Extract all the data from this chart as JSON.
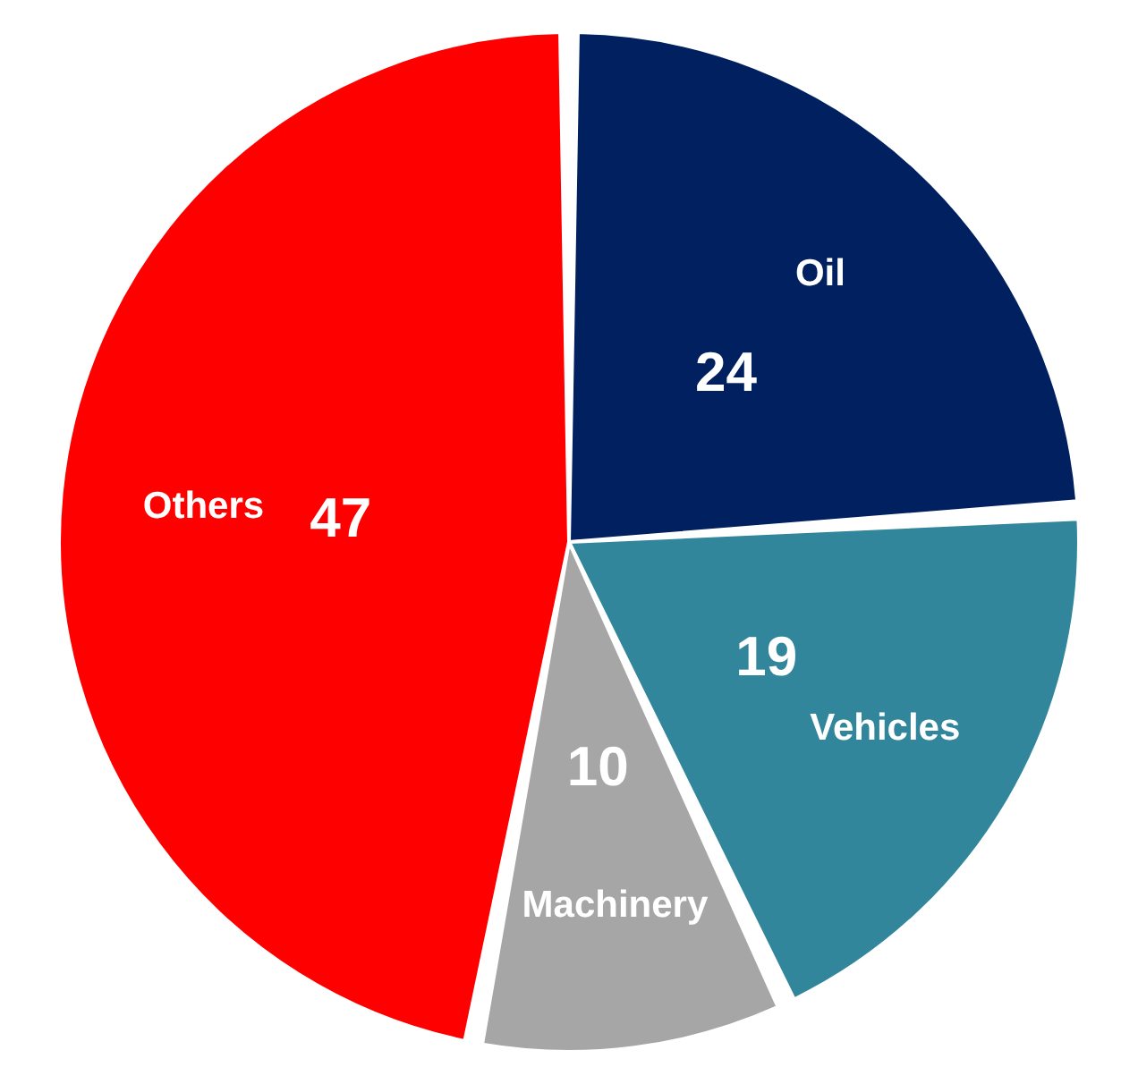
{
  "chart_data": {
    "type": "pie",
    "categories": [
      "Oil",
      "Vehicles",
      "Machinery",
      "Others"
    ],
    "values": [
      24,
      19,
      10,
      47
    ],
    "colors": [
      "#002060",
      "#31869b",
      "#a6a6a6",
      "#ff0000"
    ],
    "data_labels": true,
    "legend": false
  }
}
